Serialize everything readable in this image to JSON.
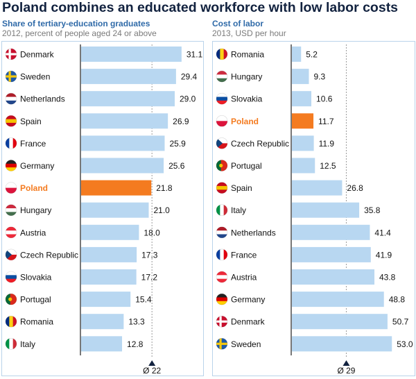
{
  "title": "Poland combines an educated workforce with low labor costs",
  "colors": {
    "bar": "#b8d7f1",
    "highlight": "#f47b20",
    "highlight_text": "#f47b20",
    "title": "#12223f",
    "subtitle": "#2f6aa8",
    "avg_marker": "#12223f"
  },
  "chart_data": [
    {
      "type": "bar",
      "orientation": "horizontal",
      "title": "Share of tertiary-education graduates",
      "subtitle": "2012, percent of people aged 24 or above",
      "categories": [
        "Denmark",
        "Sweden",
        "Netherlands",
        "Spain",
        "France",
        "Germany",
        "Poland",
        "Hungary",
        "Austria",
        "Czech Republic",
        "Slovakia",
        "Portugal",
        "Romania",
        "Italy"
      ],
      "values": [
        31.1,
        29.4,
        29.0,
        26.9,
        25.9,
        25.6,
        21.8,
        21.0,
        18.0,
        17.3,
        17.2,
        15.4,
        13.3,
        12.8
      ],
      "labels": [
        "31.1",
        "29.4",
        "29.0",
        "26.9",
        "25.9",
        "25.6",
        "21.8",
        "21.0",
        "18.0",
        "17.3",
        "17.2",
        "15.4",
        "13.3",
        "12.8"
      ],
      "highlight": "Poland",
      "average": 22,
      "average_label": "Ø 22",
      "xlim": [
        0,
        33
      ]
    },
    {
      "type": "bar",
      "orientation": "horizontal",
      "title": "Cost of labor",
      "subtitle": "2013, USD per hour",
      "categories": [
        "Romania",
        "Hungary",
        "Slovakia",
        "Poland",
        "Czech Republic",
        "Portugal",
        "Spain",
        "Italy",
        "Netherlands",
        "France",
        "Austria",
        "Germany",
        "Denmark",
        "Sweden"
      ],
      "values": [
        5.2,
        9.3,
        10.6,
        11.7,
        11.9,
        12.5,
        26.8,
        35.8,
        41.4,
        41.9,
        43.8,
        48.8,
        50.7,
        53.0
      ],
      "labels": [
        "5.2",
        "9.3",
        "10.6",
        "11.7",
        "11.9",
        "12.5",
        "26.8",
        "35.8",
        "41.4",
        "41.9",
        "43.8",
        "48.8",
        "50.7",
        "53.0"
      ],
      "highlight": "Poland",
      "average": 29,
      "average_label": "Ø 29",
      "xlim": [
        0,
        60
      ]
    }
  ]
}
